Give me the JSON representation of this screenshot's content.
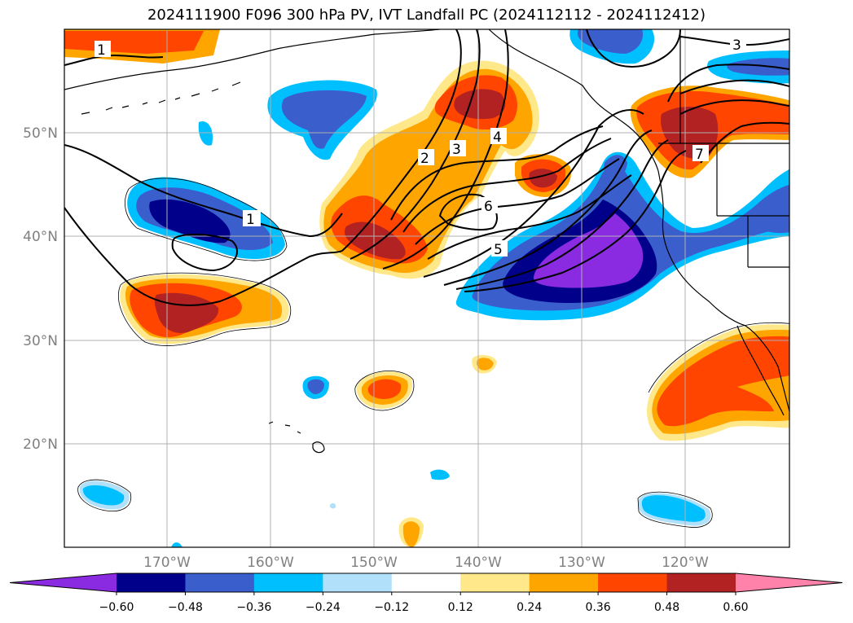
{
  "figure": {
    "title": "2024111900 F096 300 hPa PV, IVT Landfall PC (2024112112 - 2024112412)"
  },
  "map": {
    "lon_ticks": [
      "170°W",
      "160°W",
      "150°W",
      "140°W",
      "130°W",
      "120°W"
    ],
    "lat_ticks": [
      "50°N",
      "40°N",
      "30°N",
      "20°N"
    ],
    "contour_labels": [
      "1",
      "2",
      "3",
      "4",
      "5",
      "6",
      "7",
      "1",
      "3"
    ]
  },
  "colorbar": {
    "colors": [
      "#8a2be2",
      "#00008b",
      "#3a5fcd",
      "#00bfff",
      "#b0e0fa",
      "#ffffff",
      "#ffe88a",
      "#ffa500",
      "#ff4500",
      "#b22222",
      "#ff82ab"
    ],
    "tick_labels": [
      "−0.60",
      "−0.48",
      "−0.36",
      "−0.24",
      "−0.12",
      "0.12",
      "0.24",
      "0.36",
      "0.48",
      "0.60"
    ]
  },
  "chart_data": {
    "type": "heatmap",
    "title": "2024111900 F096 300 hPa PV, IVT Landfall PC (2024112112 - 2024112412)",
    "lon_range": [
      -180,
      -110
    ],
    "lat_range": [
      10,
      60
    ],
    "levels": [
      -0.6,
      -0.48,
      -0.36,
      -0.24,
      -0.12,
      0.12,
      0.24,
      0.36,
      0.48,
      0.6
    ],
    "contours": {
      "labels": [
        1,
        2,
        3,
        4,
        5,
        6,
        7
      ]
    }
  }
}
